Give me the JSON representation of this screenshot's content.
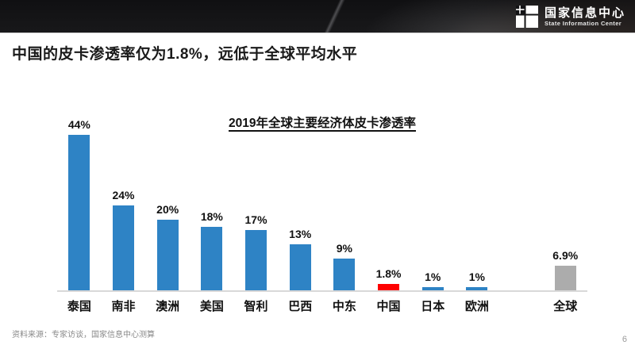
{
  "header": {
    "logo_cn": "国家信息中心",
    "logo_en": "State Information Center"
  },
  "slide": {
    "title": "中国的皮卡渗透率仅为1.8%，远低于全球平均水平",
    "source": "资料来源：专家访谈，国家信息中心测算",
    "page_number": "6"
  },
  "colors": {
    "bar_blue": "#2e83c5",
    "bar_red": "#fe0000",
    "bar_gray": "#acacac",
    "axis_line": "#d8d8d8"
  },
  "chart_data": {
    "type": "bar",
    "title": "2019年全球主要经济体皮卡渗透率",
    "categories": [
      "泰国",
      "南非",
      "澳洲",
      "美国",
      "智利",
      "巴西",
      "中东",
      "中国",
      "日本",
      "欧洲",
      "全球"
    ],
    "values": [
      44,
      24,
      20,
      18,
      17,
      13,
      9,
      1.8,
      1,
      1,
      6.9
    ],
    "labels": [
      "44%",
      "24%",
      "20%",
      "18%",
      "17%",
      "13%",
      "9%",
      "1.8%",
      "1%",
      "1%",
      "6.9%"
    ],
    "bar_colors": [
      "blue",
      "blue",
      "blue",
      "blue",
      "blue",
      "blue",
      "blue",
      "red",
      "blue",
      "blue",
      "gray"
    ],
    "gap_before": [
      false,
      false,
      false,
      false,
      false,
      false,
      false,
      false,
      false,
      false,
      true
    ],
    "xlabel": "",
    "ylabel": "",
    "ylim": [
      0,
      48
    ],
    "grid": false,
    "legend": false
  }
}
